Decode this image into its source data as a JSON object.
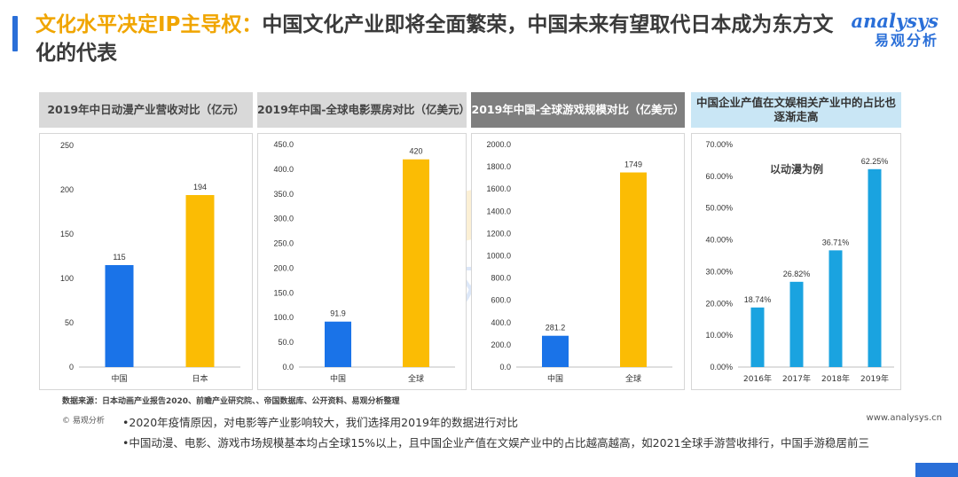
{
  "header": {
    "title_highlight": "文化水平决定IP主导权：",
    "title_rest": "中国文化产业即将全面繁荣，中国未来有望取代日本成为东方文化的代表"
  },
  "logo": {
    "en": "analysys",
    "cn": "易观分析"
  },
  "watermark": {
    "en": "analysys",
    "cn": "易观分析"
  },
  "colors": {
    "blue": "#1a73e8",
    "orange": "#fbbc04",
    "light_blue": "#1aa3e0",
    "header_grey": "#d9d9d9",
    "header_dark": "#7f7f7f",
    "header_light_blue": "#c9e6f5"
  },
  "chart_data": [
    {
      "type": "bar",
      "title": "2019年中日动漫产业营收对比（亿元）",
      "categories": [
        "中国",
        "日本"
      ],
      "values": [
        115,
        194
      ],
      "ylim": [
        0,
        250
      ],
      "yticks": [
        "0",
        "50",
        "100",
        "150",
        "200",
        "250"
      ],
      "value_labels": [
        "115",
        "194"
      ]
    },
    {
      "type": "bar",
      "title": "2019年中国-全球电影票房对比（亿美元）",
      "categories": [
        "中国",
        "全球"
      ],
      "values": [
        91.9,
        420
      ],
      "ylim": [
        0,
        450
      ],
      "yticks": [
        "0.0",
        "50.0",
        "100.0",
        "150.0",
        "200.0",
        "250.0",
        "300.0",
        "350.0",
        "400.0",
        "450.0"
      ],
      "value_labels": [
        "91.9",
        "420"
      ]
    },
    {
      "type": "bar",
      "title": "2019年中国-全球游戏规模对比（亿美元）",
      "categories": [
        "中国",
        "全球"
      ],
      "values": [
        281.2,
        1749
      ],
      "ylim": [
        0,
        2000
      ],
      "yticks": [
        "0.0",
        "200.0",
        "400.0",
        "600.0",
        "800.0",
        "1000.0",
        "1200.0",
        "1400.0",
        "1600.0",
        "1800.0",
        "2000.0"
      ],
      "value_labels": [
        "281.2",
        "1749"
      ]
    },
    {
      "type": "bar",
      "title": "中国企业产值在文娱相关产业中的占比也逐渐走高",
      "annotation": "以动漫为例",
      "categories": [
        "2016年",
        "2017年",
        "2018年",
        "2019年"
      ],
      "values": [
        18.74,
        26.82,
        36.71,
        62.25
      ],
      "ylim": [
        0,
        70
      ],
      "yticks": [
        "0.00%",
        "10.00%",
        "20.00%",
        "30.00%",
        "40.00%",
        "50.00%",
        "60.00%",
        "70.00%"
      ],
      "value_labels": [
        "18.74%",
        "26.82%",
        "36.71%",
        "62.25%"
      ]
    }
  ],
  "footer": {
    "source": "数据来源：日本动画产业报告2020、前瞻产业研究院、、帝国数据库、公开资料、易观分析整理",
    "copyright": "© 易观分析",
    "website": "www.analysys.cn",
    "notes": [
      "•2020年疫情原因，对电影等产业影响较大，我们选择用2019年的数据进行对比",
      "•中国动漫、电影、游戏市场规模基本均占全球15%以上，且中国企业产值在文娱产业中的占比越高越高，如2021全球手游营收排行，中国手游稳居前三"
    ]
  }
}
